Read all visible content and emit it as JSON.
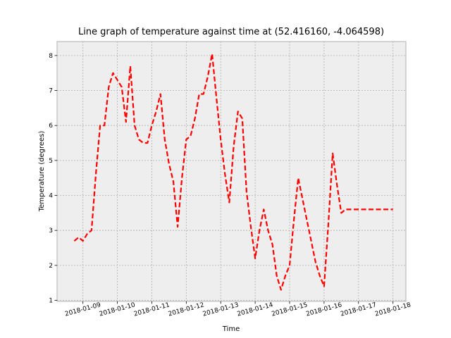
{
  "chart_data": {
    "type": "line",
    "title": "Line graph of temperature against time at (52.416160, -4.064598)",
    "xlabel": "Time",
    "ylabel": "Temperature (degrees)",
    "x_ticks": [
      "2018-01-09",
      "2018-01-10",
      "2018-01-11",
      "2018-01-12",
      "2018-01-13",
      "2018-01-14",
      "2018-01-15",
      "2018-01-16",
      "2018-01-17",
      "2018-01-18"
    ],
    "y_ticks": [
      "1",
      "2",
      "3",
      "4",
      "5",
      "6",
      "7",
      "8"
    ],
    "xlim": [
      "2018-01-08 06:00",
      "2018-01-18 09:00"
    ],
    "ylim": [
      0.97,
      8.4
    ],
    "grid": true,
    "style": {
      "line_color": "#ff0000",
      "line_style": "dashed",
      "background": "#eeeeee",
      "grid_color": "#b0b0b0"
    },
    "series": [
      {
        "x": [
          "2018-01-08 18:00",
          "2018-01-08 21:00",
          "2018-01-09 00:00",
          "2018-01-09 03:00",
          "2018-01-09 06:00",
          "2018-01-09 09:00",
          "2018-01-09 12:00",
          "2018-01-09 15:00",
          "2018-01-09 18:00",
          "2018-01-09 21:00",
          "2018-01-10 00:00",
          "2018-01-10 03:00",
          "2018-01-10 06:00",
          "2018-01-10 09:00",
          "2018-01-10 12:00",
          "2018-01-10 15:00",
          "2018-01-10 18:00",
          "2018-01-10 21:00",
          "2018-01-11 00:00",
          "2018-01-11 03:00",
          "2018-01-11 06:00",
          "2018-01-11 09:00",
          "2018-01-11 12:00",
          "2018-01-11 15:00",
          "2018-01-11 18:00",
          "2018-01-11 21:00",
          "2018-01-12 00:00",
          "2018-01-12 03:00",
          "2018-01-12 06:00",
          "2018-01-12 09:00",
          "2018-01-12 12:00",
          "2018-01-12 15:00",
          "2018-01-12 18:00",
          "2018-01-12 21:00",
          "2018-01-13 00:00",
          "2018-01-13 03:00",
          "2018-01-13 06:00",
          "2018-01-13 09:00",
          "2018-01-13 12:00",
          "2018-01-13 15:00",
          "2018-01-13 18:00",
          "2018-01-13 21:00",
          "2018-01-14 00:00",
          "2018-01-14 03:00",
          "2018-01-14 06:00",
          "2018-01-14 09:00",
          "2018-01-14 12:00",
          "2018-01-14 15:00",
          "2018-01-14 18:00",
          "2018-01-14 21:00",
          "2018-01-15 00:00",
          "2018-01-15 03:00",
          "2018-01-15 06:00",
          "2018-01-15 09:00",
          "2018-01-15 12:00",
          "2018-01-15 15:00",
          "2018-01-15 18:00",
          "2018-01-15 21:00",
          "2018-01-16 00:00",
          "2018-01-16 03:00",
          "2018-01-16 06:00",
          "2018-01-16 09:00",
          "2018-01-16 12:00",
          "2018-01-16 15:00",
          "2018-01-16 18:00",
          "2018-01-16 21:00",
          "2018-01-17 00:00",
          "2018-01-17 03:00",
          "2018-01-17 06:00",
          "2018-01-17 09:00",
          "2018-01-17 12:00",
          "2018-01-17 15:00",
          "2018-01-17 18:00",
          "2018-01-17 21:00",
          "2018-01-18 00:00"
        ],
        "y": [
          2.7,
          2.8,
          2.7,
          2.9,
          3.0,
          4.6,
          6.0,
          6.0,
          7.1,
          7.5,
          7.3,
          7.1,
          6.1,
          7.7,
          6.0,
          5.6,
          5.5,
          5.5,
          6.0,
          6.4,
          6.9,
          5.6,
          4.9,
          4.4,
          3.1,
          4.5,
          5.6,
          5.7,
          6.2,
          6.9,
          6.9,
          7.4,
          8.05,
          6.8,
          5.6,
          4.6,
          3.8,
          5.4,
          6.4,
          6.2,
          4.1,
          3.1,
          2.2,
          3.0,
          3.6,
          3.0,
          2.6,
          1.7,
          1.3,
          1.7,
          2.0,
          3.3,
          4.5,
          3.9,
          3.3,
          2.7,
          2.1,
          1.7,
          1.4,
          3.2,
          5.2,
          4.3,
          3.5,
          3.6,
          3.6,
          3.6,
          3.6,
          3.6,
          3.6,
          3.6,
          3.6,
          3.6,
          3.6,
          3.6,
          3.6
        ]
      }
    ]
  }
}
